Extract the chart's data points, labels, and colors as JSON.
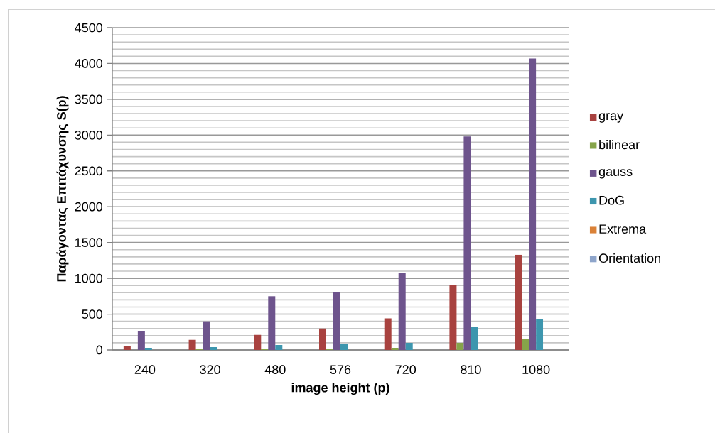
{
  "chart_data": {
    "type": "bar",
    "xlabel": "image height (p)",
    "ylabel": "Παράγοντας Επιτάχυνσης S(p)",
    "categories": [
      "240",
      "320",
      "480",
      "576",
      "720",
      "810",
      "1080"
    ],
    "series": [
      {
        "name": "gray",
        "color": "#a8423f",
        "values": [
          50,
          140,
          210,
          300,
          440,
          910,
          1330
        ]
      },
      {
        "name": "bilinear",
        "color": "#86a44a",
        "values": [
          null,
          20,
          20,
          20,
          30,
          100,
          150
        ]
      },
      {
        "name": "gauss",
        "color": "#6e548d",
        "values": [
          260,
          400,
          750,
          810,
          1070,
          2980,
          4070
        ]
      },
      {
        "name": "DoG",
        "color": "#3d96ae",
        "values": [
          30,
          40,
          70,
          80,
          100,
          320,
          430
        ]
      },
      {
        "name": "Extrema",
        "color": "#da8137",
        "values": [
          0,
          0,
          0,
          0,
          0,
          0,
          0
        ]
      },
      {
        "name": "Orientation",
        "color": "#8ea5cb",
        "values": [
          0,
          0,
          0,
          0,
          0,
          0,
          0
        ]
      }
    ],
    "ylim": [
      0,
      4500
    ],
    "yticks": [
      0,
      500,
      1000,
      1500,
      2000,
      2500,
      3000,
      3500,
      4000,
      4500
    ],
    "grid": "y",
    "legend": "right"
  }
}
